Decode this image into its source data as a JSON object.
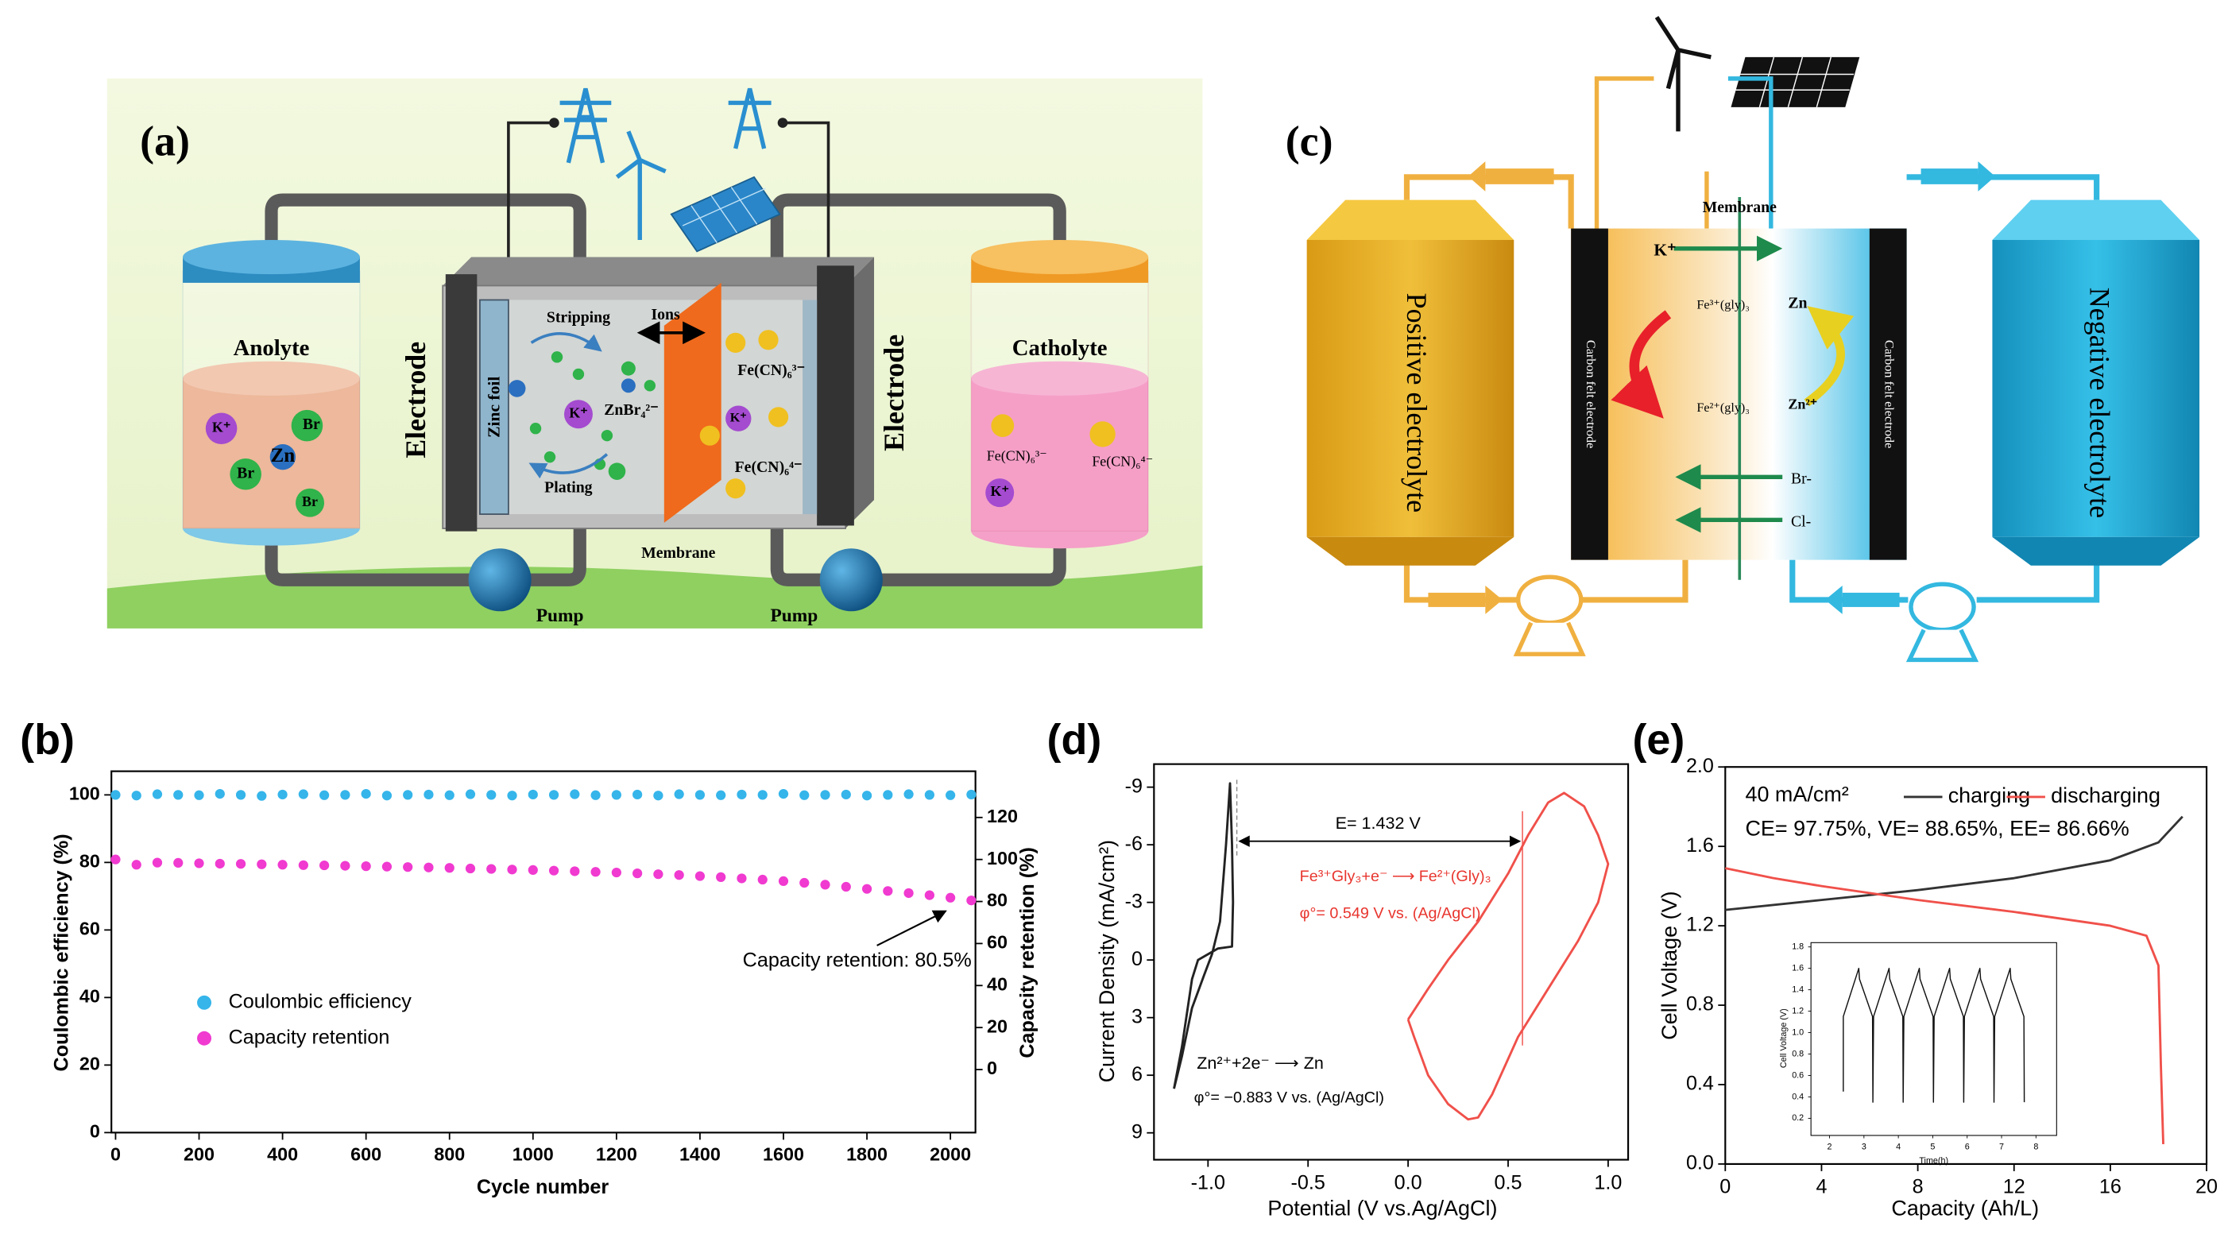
{
  "panel_a": {
    "label": "(a)",
    "anolyte": "Anolyte",
    "catholyte": "Catholyte",
    "electrode_left": "Electrode",
    "electrode_right": "Electrode",
    "zinc_foil": "Zinc foil",
    "stripping": "Stripping",
    "ions": "Ions",
    "znbr4": "ZnBr₄²⁻",
    "plating": "Plating",
    "membrane": "Membrane",
    "fecn_3": "Fe(CN)₆³⁻",
    "fecn_4": "Fe(CN)₆⁴⁻",
    "pump_left": "Pump",
    "pump_right": "Pump",
    "anolyte_ions": [
      "K⁺",
      "Br",
      "Zn",
      "Br",
      "Br"
    ],
    "cell_k": "K⁺",
    "cell_k_right": "K⁺",
    "catholyte_ions": [
      "Fe(CN)₆³⁻",
      "Fe(CN)₆⁴⁻",
      "K⁺"
    ]
  },
  "panel_c": {
    "label": "(c)",
    "membrane": "Membrane",
    "positive": "Positive electrolyte",
    "negative": "Negative electrolyte",
    "felt_left": "Carbon felt electrode",
    "felt_right": "Carbon felt electrode",
    "k": "K⁺",
    "fe_top": "Fe³⁺(gly)₃",
    "fe_bottom": "Fe²⁺(gly)₃",
    "zn": "Zn",
    "zn2": "Zn²⁺",
    "br": "Br-",
    "cl": "Cl-"
  },
  "chart_data": [
    {
      "type": "scatter",
      "label": "(b)",
      "x_label": "Cycle number",
      "y_label": "Coulombic efficiency (%)",
      "y2_label": "Capacity retention (%)",
      "x": [
        0,
        50,
        100,
        150,
        200,
        250,
        300,
        350,
        400,
        450,
        500,
        550,
        600,
        650,
        700,
        750,
        800,
        850,
        900,
        950,
        1000,
        1050,
        1100,
        1150,
        1200,
        1250,
        1300,
        1350,
        1400,
        1450,
        1500,
        1550,
        1600,
        1650,
        1700,
        1750,
        1800,
        1850,
        1900,
        1950,
        2000,
        2050
      ],
      "xlim": [
        -10,
        2060
      ],
      "ylim": [
        0,
        107
      ],
      "y2lim": [
        -30,
        142
      ],
      "xticks": [
        0,
        200,
        400,
        600,
        800,
        1000,
        1200,
        1400,
        1600,
        1800,
        2000
      ],
      "yticks": [
        0,
        20,
        40,
        60,
        80,
        100
      ],
      "y2ticks": [
        0,
        20,
        40,
        60,
        80,
        100,
        120
      ],
      "series": [
        {
          "name": "Coulombic efficiency",
          "color": "#35b5ea",
          "values": [
            100,
            99.8,
            100.2,
            100,
            99.9,
            100.3,
            100,
            99.7,
            100.1,
            100.2,
            99.9,
            100,
            100.3,
            99.8,
            100,
            100.1,
            99.9,
            100.2,
            100,
            99.8,
            100.1,
            100,
            100.2,
            99.9,
            100,
            100.1,
            99.8,
            100.2,
            100,
            99.9,
            100.1,
            100,
            100.3,
            99.9,
            100,
            100.1,
            99.8,
            100,
            100.2,
            100,
            99.9,
            100.1
          ]
        },
        {
          "name": "Capacity retention",
          "color": "#f03ad0",
          "axis": "y2",
          "values": [
            100,
            97.5,
            98.5,
            98.4,
            98.2,
            98.0,
            97.9,
            97.7,
            97.5,
            97.3,
            97.2,
            97.0,
            96.8,
            96.6,
            96.4,
            96.2,
            96.0,
            95.7,
            95.5,
            95.2,
            95.0,
            94.7,
            94.4,
            94.1,
            93.8,
            93.4,
            93.0,
            92.6,
            92.1,
            91.6,
            91.0,
            90.4,
            89.7,
            88.9,
            88.0,
            87.0,
            86.0,
            85.0,
            84.0,
            83.0,
            81.8,
            80.5
          ]
        }
      ],
      "annotations": [
        {
          "text": "Capacity retention: 80.5%",
          "color": "#000000"
        }
      ]
    },
    {
      "type": "line",
      "label": "(d)",
      "x_label": "Potential (V vs.Ag/AgCl)",
      "y_label": "Current Density (mA/cm²)",
      "xlim": [
        -1.27,
        1.1
      ],
      "ylim": [
        10.4,
        -10.2
      ],
      "xticks": [
        {
          "value": -1,
          "label": "-1.0"
        },
        -0.5,
        {
          "value": 0,
          "label": "0.0"
        },
        0.5,
        {
          "value": 1,
          "label": "1.0"
        }
      ],
      "yticks": [
        -9,
        -6,
        -3,
        0,
        3,
        6,
        9
      ],
      "series": [
        {
          "color": "#222222",
          "x": [
            -1.17,
            -1.13,
            -1.08,
            -1.05,
            -0.95,
            -0.88,
            -0.875,
            -0.88,
            -0.89,
            -0.91,
            -0.94,
            -0.98,
            -1.02,
            -1.08,
            -1.13,
            -1.17
          ],
          "values": [
            6.7,
            4.5,
            1.0,
            0,
            -0.6,
            -0.7,
            -3,
            -6,
            -9.2,
            -6,
            -2,
            -0.3,
            0.8,
            2.5,
            5,
            6.7
          ]
        },
        {
          "color": "#f0504a",
          "x": [
            0,
            0.1,
            0.2,
            0.35,
            0.5,
            0.6,
            0.7,
            0.78,
            0.88,
            0.95,
            1.0,
            0.95,
            0.85,
            0.7,
            0.55,
            0.42,
            0.35,
            0.3,
            0.2,
            0.1,
            0.03,
            0
          ],
          "values": [
            3.1,
            1.5,
            0,
            -2,
            -4.5,
            -6.5,
            -8.2,
            -8.7,
            -8,
            -6.5,
            -5,
            -3,
            -1,
            1.5,
            4,
            7,
            8.2,
            8.3,
            7.5,
            6,
            4,
            3.1
          ]
        }
      ],
      "annotations": [
        {
          "text": "E= 1.432 V",
          "color": "#000000"
        },
        {
          "text": "Fe³⁺Gly₃+e⁻ ⟶ Fe²⁺(Gly)₃",
          "color": "#e8352e"
        },
        {
          "text": "φ°= 0.549 V vs. (Ag/AgCl)",
          "color": "#e8352e"
        },
        {
          "text": "Zn²⁺+2e⁻ ⟶ Zn",
          "color": "#000000"
        },
        {
          "text": "φ°= −0.883 V vs. (Ag/AgCl)",
          "color": "#000000"
        }
      ]
    },
    {
      "type": "line",
      "label": "(e)",
      "x_label": "Capacity (Ah/L)",
      "y_label": "Cell Voltage (V)",
      "legend_title": "40 mA/cm²",
      "xlim": [
        0,
        20
      ],
      "ylim": [
        0,
        2
      ],
      "xticks": [
        0,
        4,
        8,
        12,
        16,
        20
      ],
      "yticks": [
        {
          "value": 0,
          "label": "0.0"
        },
        0.4,
        0.8,
        1.2,
        1.6,
        {
          "value": 2,
          "label": "2.0"
        }
      ],
      "series": [
        {
          "name": "charging",
          "color": "#333333",
          "x": [
            0,
            4,
            8,
            12,
            16,
            18,
            19
          ],
          "values": [
            1.28,
            1.33,
            1.38,
            1.44,
            1.53,
            1.62,
            1.75
          ]
        },
        {
          "name": "discharging",
          "color": "#f0504a",
          "x": [
            0,
            2,
            4,
            8,
            12,
            16,
            17.5,
            18,
            18.1,
            18.2
          ],
          "values": [
            1.49,
            1.44,
            1.4,
            1.33,
            1.27,
            1.2,
            1.15,
            1.0,
            0.5,
            0.1
          ]
        }
      ],
      "annotations": [
        {
          "text": "CE= 97.75%, VE= 88.65%, EE= 86.66%",
          "color": "#000000"
        }
      ]
    },
    {
      "type": "line",
      "x_label": "Time(h)",
      "y_label": "Cell Voltage (V)",
      "xlim": [
        1.46,
        8.6
      ],
      "ylim": [
        0.04,
        1.84
      ],
      "xticks": [
        2,
        3,
        4,
        5,
        6,
        7,
        8
      ],
      "yticks": [
        0.2,
        0.4,
        0.6,
        0.8,
        {
          "value": 1,
          "label": "1.0"
        },
        1.2,
        1.4,
        1.6,
        1.8
      ],
      "series": [
        {
          "color": "#111111",
          "x": [
            2.4,
            2.4,
            2.85,
            2.87,
            3.25,
            3.26,
            3.28,
            3.73,
            3.75,
            4.13,
            4.14,
            4.16,
            4.61,
            4.63,
            5.01,
            5.02,
            5.04,
            5.49,
            5.51,
            5.89,
            5.9,
            5.92,
            6.37,
            6.39,
            6.77,
            6.78,
            6.8,
            7.25,
            7.27,
            7.65,
            7.66
          ],
          "values": [
            0.45,
            1.15,
            1.6,
            1.5,
            1.15,
            0.35,
            1.15,
            1.6,
            1.5,
            1.15,
            0.35,
            1.15,
            1.6,
            1.5,
            1.15,
            0.35,
            1.15,
            1.6,
            1.5,
            1.15,
            0.35,
            1.15,
            1.6,
            1.5,
            1.15,
            0.35,
            1.15,
            1.6,
            1.5,
            1.15,
            0.35
          ]
        }
      ]
    }
  ]
}
